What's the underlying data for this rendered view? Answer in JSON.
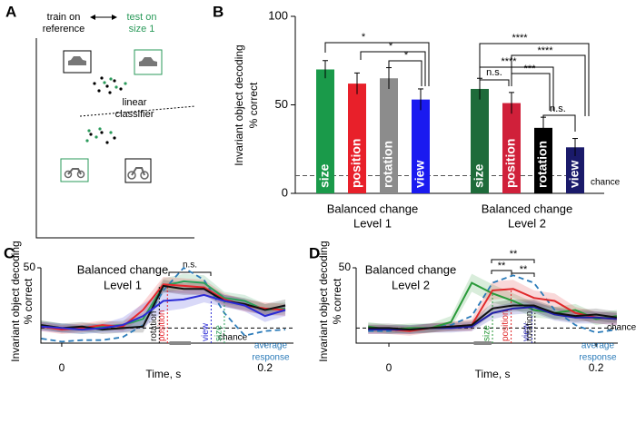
{
  "panels": [
    "A",
    "B",
    "C",
    "D"
  ],
  "diagram": {
    "train_label": [
      "train on",
      "reference"
    ],
    "test_label": [
      "test on",
      "size 1"
    ],
    "classifier_label": [
      "linear",
      "classifier"
    ]
  },
  "chart_data": [
    {
      "type": "bar",
      "ylabel": [
        "Invariant object decoding",
        "% correct"
      ],
      "ylim": [
        0,
        100
      ],
      "yticks": [
        0,
        50,
        100
      ],
      "groups": [
        {
          "label": [
            "Balanced change",
            "Level 1"
          ],
          "categories": [
            "size",
            "position",
            "rotation",
            "view"
          ],
          "values": [
            70,
            62,
            65,
            53
          ],
          "errors": [
            5,
            6,
            6,
            6
          ],
          "colors": [
            "#1a9a4a",
            "#e8202a",
            "#8c8c8c",
            "#1a1af0"
          ]
        },
        {
          "label": [
            "Balanced change",
            "Level 2"
          ],
          "categories": [
            "size",
            "position",
            "rotation",
            "view"
          ],
          "values": [
            59,
            51,
            37,
            26
          ],
          "errors": [
            6,
            6,
            6,
            5
          ],
          "colors": [
            "#1e6b3a",
            "#d0203a",
            "#000000",
            "#1a1a6a"
          ]
        }
      ],
      "chance": 10,
      "chance_label": "chance",
      "significance": [
        "*",
        "*",
        "*",
        "****",
        "****",
        "****",
        "***",
        "n.s.",
        "n.s."
      ]
    },
    {
      "type": "line",
      "title": [
        "Balanced change",
        "Level 1"
      ],
      "ylabel": [
        "Invariant object decoding",
        "% correct"
      ],
      "xlabel": "Time, s",
      "x": [
        -0.02,
        0,
        0.02,
        0.04,
        0.06,
        0.08,
        0.1,
        0.12,
        0.14,
        0.16,
        0.18,
        0.2,
        0.22
      ],
      "xlim": [
        -0.0205,
        0.228
      ],
      "xticks": [
        0,
        0.2
      ],
      "ylim": [
        0,
        50
      ],
      "yticks": [
        50
      ],
      "chance": 10,
      "chance_label": "chance",
      "series": [
        {
          "name": "size",
          "color": "#2ca05a",
          "values": [
            12,
            10,
            9,
            11,
            12,
            16,
            38,
            41,
            40,
            30,
            28,
            22,
            23
          ],
          "ci": [
            3,
            3,
            3,
            3,
            3,
            4,
            5,
            5,
            5,
            4,
            4,
            4,
            4
          ],
          "latency": 0.16
        },
        {
          "name": "position",
          "color": "#e8262d",
          "values": [
            11,
            9,
            10,
            12,
            11,
            22,
            39,
            38,
            37,
            29,
            25,
            23,
            22
          ],
          "ci": [
            3,
            3,
            3,
            3,
            3,
            5,
            5,
            5,
            5,
            4,
            4,
            4,
            4
          ],
          "latency": 0.104
        },
        {
          "name": "rotation",
          "color": "#111111",
          "values": [
            12,
            10,
            11,
            9,
            10,
            11,
            38,
            36,
            36,
            28,
            26,
            22,
            25
          ],
          "ci": [
            3,
            3,
            3,
            3,
            3,
            4,
            4,
            4,
            4,
            4,
            4,
            4,
            4
          ],
          "latency": 0.096
        },
        {
          "name": "view",
          "color": "#2b2bd6",
          "values": [
            11,
            10,
            9,
            10,
            12,
            18,
            28,
            29,
            32,
            28,
            25,
            18,
            22
          ],
          "ci": [
            3,
            3,
            3,
            3,
            5,
            8,
            7,
            6,
            5,
            4,
            4,
            4,
            4
          ],
          "latency": 0.147
        }
      ],
      "average": {
        "name": [
          "average",
          "response"
        ],
        "color": "#2b7bb9",
        "values": [
          3,
          1,
          2,
          2,
          4,
          12,
          35,
          50,
          42,
          20,
          5,
          8,
          9
        ]
      },
      "window": [
        0.106,
        0.127
      ],
      "significance": [
        "n.s."
      ]
    },
    {
      "type": "line",
      "title": [
        "Balanced change",
        "Level 2"
      ],
      "ylabel": [
        "Invariant object decoding",
        "% correct"
      ],
      "xlabel": "Time, s",
      "x": [
        -0.02,
        0,
        0.02,
        0.04,
        0.06,
        0.08,
        0.1,
        0.12,
        0.14,
        0.16,
        0.18,
        0.2,
        0.22
      ],
      "xlim": [
        -0.0316,
        0.221
      ],
      "xticks": [
        0,
        0.2
      ],
      "ylim": [
        0,
        50
      ],
      "yticks": [
        50
      ],
      "chance": 10,
      "chance_label": "chance",
      "series": [
        {
          "name": "size",
          "color": "#2a9a3a",
          "values": [
            11,
            9,
            10,
            10,
            14,
            40,
            33,
            28,
            22,
            20,
            22,
            16,
            18
          ],
          "ci": [
            3,
            3,
            3,
            3,
            4,
            6,
            6,
            5,
            5,
            4,
            4,
            4,
            4
          ],
          "latency": 0.1
        },
        {
          "name": "position",
          "color": "#e0282a",
          "values": [
            9,
            9,
            8,
            10,
            11,
            12,
            35,
            36,
            30,
            28,
            20,
            17,
            16
          ],
          "ci": [
            3,
            3,
            3,
            3,
            3,
            4,
            6,
            6,
            5,
            5,
            4,
            4,
            4
          ],
          "latency": 0.118
        },
        {
          "name": "view",
          "color": "#1f1fa8",
          "values": [
            9,
            9,
            9,
            10,
            10,
            11,
            20,
            23,
            24,
            19,
            17,
            17,
            16
          ],
          "ci": [
            3,
            3,
            3,
            3,
            3,
            3,
            4,
            4,
            4,
            4,
            4,
            4,
            4
          ],
          "latency": 0.138
        },
        {
          "name": "rotation",
          "color": "#111111",
          "values": [
            10,
            10,
            9,
            10,
            11,
            12,
            23,
            25,
            25,
            20,
            18,
            19,
            17
          ],
          "ci": [
            3,
            3,
            3,
            3,
            3,
            3,
            4,
            4,
            4,
            4,
            4,
            4,
            4
          ],
          "latency": 0.141
        }
      ],
      "average": {
        "name": [
          "average",
          "response"
        ],
        "color": "#2b7bb9",
        "values": [
          8,
          8,
          9,
          10,
          12,
          18,
          40,
          45,
          40,
          22,
          12,
          7,
          9
        ]
      },
      "window": [
        0.082,
        0.099
      ],
      "significance": [
        "**",
        "**",
        "**"
      ]
    }
  ]
}
